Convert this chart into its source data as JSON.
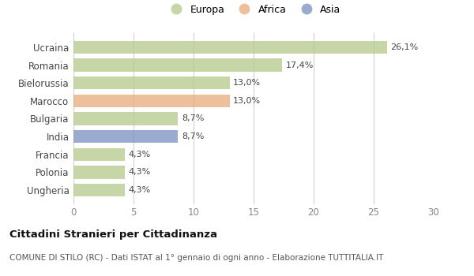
{
  "categories": [
    "Ucraina",
    "Romania",
    "Bielorussia",
    "Marocco",
    "Bulgaria",
    "India",
    "Francia",
    "Polonia",
    "Ungheria"
  ],
  "values": [
    26.1,
    17.4,
    13.0,
    13.0,
    8.7,
    8.7,
    4.3,
    4.3,
    4.3
  ],
  "labels": [
    "26,1%",
    "17,4%",
    "13,0%",
    "13,0%",
    "8,7%",
    "8,7%",
    "4,3%",
    "4,3%",
    "4,3%"
  ],
  "colors": [
    "#b5c98a",
    "#b5c98a",
    "#b5c98a",
    "#e8aa7a",
    "#b5c98a",
    "#7a8fbf",
    "#b5c98a",
    "#b5c98a",
    "#b5c98a"
  ],
  "legend": [
    {
      "label": "Europa",
      "color": "#b5c98a"
    },
    {
      "label": "Africa",
      "color": "#e8aa7a"
    },
    {
      "label": "Asia",
      "color": "#7a8fbf"
    }
  ],
  "xlim": [
    0,
    30
  ],
  "xticks": [
    0,
    5,
    10,
    15,
    20,
    25,
    30
  ],
  "title": "Cittadini Stranieri per Cittadinanza",
  "subtitle": "COMUNE DI STILO (RC) - Dati ISTAT al 1° gennaio di ogni anno - Elaborazione TUTTITALIA.IT",
  "background_color": "#ffffff",
  "bar_alpha": 0.75,
  "bar_height": 0.72
}
